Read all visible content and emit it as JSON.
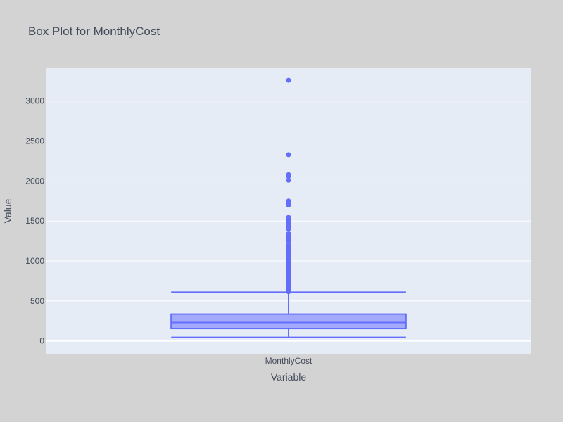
{
  "chart_data": {
    "type": "box",
    "title": "Box Plot for MonthlyCost",
    "xlabel": "Variable",
    "ylabel": "Value",
    "categories": [
      "MonthlyCost"
    ],
    "ylim": [
      -170,
      3420
    ],
    "yticks": [
      0,
      500,
      1000,
      1500,
      2000,
      2500,
      3000
    ],
    "grid": true,
    "colors": {
      "page_background": "#d3d3d3",
      "plot_background": "#e5ecf6",
      "grid": "#ffffff",
      "box_line": "#636efa",
      "box_fill": "#a3a9fb",
      "text": "#444b5a"
    },
    "series": [
      {
        "category": "MonthlyCost",
        "lower_fence": 45,
        "q1": 155,
        "median": 230,
        "q3": 335,
        "upper_fence": 610,
        "outliers": [
          615,
          622,
          630,
          638,
          645,
          652,
          660,
          668,
          675,
          683,
          690,
          698,
          705,
          713,
          720,
          728,
          735,
          743,
          750,
          758,
          765,
          773,
          780,
          790,
          800,
          810,
          820,
          830,
          840,
          850,
          860,
          870,
          880,
          890,
          900,
          910,
          920,
          935,
          950,
          965,
          980,
          995,
          1010,
          1025,
          1040,
          1055,
          1070,
          1085,
          1100,
          1120,
          1140,
          1160,
          1180,
          1200,
          1250,
          1275,
          1300,
          1320,
          1340,
          1400,
          1420,
          1440,
          1460,
          1480,
          1500,
          1515,
          1530,
          1545,
          1700,
          1730,
          1750,
          2010,
          2060,
          2080,
          2330,
          3260
        ]
      }
    ]
  }
}
